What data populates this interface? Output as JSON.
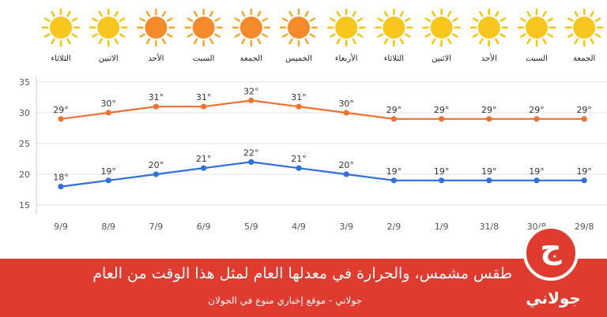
{
  "chart_data": {
    "type": "line",
    "categories": [
      "9/9",
      "8/9",
      "7/9",
      "6/9",
      "5/9",
      "4/9",
      "3/9",
      "2/9",
      "1/9",
      "31/8",
      "30/8",
      "29/8"
    ],
    "days": [
      "الثلاثاء",
      "الاثنين",
      "الأحد",
      "السبت",
      "الجمعة",
      "الخميس",
      "الأربعاء",
      "الثلاثاء",
      "الاثنين",
      "الأحد",
      "السبت",
      "الجمعة"
    ],
    "weather_icons": [
      "sun-icon",
      "sun-icon",
      "hot-sun-icon",
      "hot-sun-icon",
      "hot-sun-icon",
      "hot-sun-icon",
      "sun-icon",
      "sun-icon",
      "sun-icon",
      "sun-icon",
      "sun-icon",
      "sun-icon"
    ],
    "series": [
      {
        "color": "#f07030",
        "values": [
          29,
          30,
          31,
          31,
          32,
          31,
          30,
          29,
          29,
          29,
          29,
          29
        ],
        "labels": [
          "29°",
          "30°",
          "31°",
          "31°",
          "32°",
          "31°",
          "30°",
          "29°",
          "29°",
          "29°",
          "29°",
          "29°"
        ]
      },
      {
        "color": "#2f6fe0",
        "values": [
          18,
          19,
          20,
          21,
          22,
          21,
          20,
          19,
          19,
          19,
          19,
          19
        ],
        "labels": [
          "18°",
          "19°",
          "20°",
          "21°",
          "22°",
          "21°",
          "20°",
          "19°",
          "19°",
          "19°",
          "19°",
          "19°"
        ]
      }
    ],
    "yticks": [
      "35",
      "30",
      "25",
      "20",
      "15"
    ],
    "ytick_values": [
      35,
      30,
      25,
      20,
      15
    ],
    "ylim": [
      14,
      36
    ],
    "grid": true,
    "title": "",
    "xlabel": "",
    "ylabel": ""
  },
  "banner": {
    "headline": "طقس مشمس، والحرارة في معدلها العام لمثل هذا الوقت من العام",
    "subline": "جولاني - موقع إخباري منوع في الجولان",
    "color": "#e03b2f"
  },
  "logo": {
    "glyph": "ج",
    "text": "جولاني"
  }
}
